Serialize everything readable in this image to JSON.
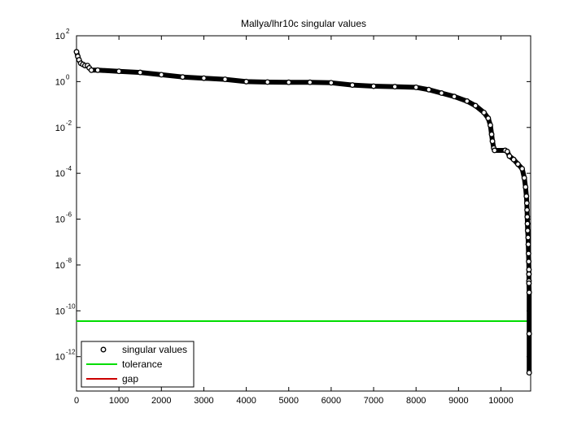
{
  "chart_data": {
    "type": "scatter",
    "title": "Mallya/lhr10c singular values",
    "xlabel": "",
    "ylabel": "",
    "xlim": [
      0,
      10700
    ],
    "ylim_log10": [
      -13.5,
      2
    ],
    "yscale": "log",
    "xticks": [
      "0",
      "1000",
      "2000",
      "3000",
      "4000",
      "5000",
      "6000",
      "7000",
      "8000",
      "9000",
      "10000"
    ],
    "yticks": [
      {
        "base": "10",
        "exp": "2"
      },
      {
        "base": "10",
        "exp": "0"
      },
      {
        "base": "10",
        "exp": "-2"
      },
      {
        "base": "10",
        "exp": "-4"
      },
      {
        "base": "10",
        "exp": "-6"
      },
      {
        "base": "10",
        "exp": "-8"
      },
      {
        "base": "10",
        "exp": "-10"
      },
      {
        "base": "10",
        "exp": "-12"
      }
    ],
    "legend_position": "bottom-left",
    "series": [
      {
        "name": "singular values",
        "marker": "circle",
        "color": "#000000",
        "points_log10": [
          [
            0,
            1.3
          ],
          [
            30,
            1.1
          ],
          [
            60,
            0.95
          ],
          [
            100,
            0.8
          ],
          [
            150,
            0.75
          ],
          [
            200,
            0.7
          ],
          [
            260,
            0.7
          ],
          [
            300,
            0.6
          ],
          [
            350,
            0.5
          ],
          [
            500,
            0.5
          ],
          [
            1000,
            0.45
          ],
          [
            1500,
            0.4
          ],
          [
            2000,
            0.3
          ],
          [
            2500,
            0.2
          ],
          [
            3000,
            0.15
          ],
          [
            3500,
            0.1
          ],
          [
            4000,
            0.0
          ],
          [
            4500,
            -0.02
          ],
          [
            5000,
            -0.03
          ],
          [
            5500,
            -0.03
          ],
          [
            6000,
            -0.05
          ],
          [
            6500,
            -0.15
          ],
          [
            7000,
            -0.2
          ],
          [
            7500,
            -0.22
          ],
          [
            8000,
            -0.25
          ],
          [
            8300,
            -0.35
          ],
          [
            8600,
            -0.5
          ],
          [
            8900,
            -0.65
          ],
          [
            9200,
            -0.85
          ],
          [
            9400,
            -1.05
          ],
          [
            9600,
            -1.35
          ],
          [
            9700,
            -1.6
          ],
          [
            9750,
            -1.9
          ],
          [
            9780,
            -2.3
          ],
          [
            9800,
            -2.6
          ],
          [
            9830,
            -2.9
          ],
          [
            9850,
            -3.0
          ],
          [
            10100,
            -3.0
          ],
          [
            10150,
            -3.05
          ],
          [
            10200,
            -3.25
          ],
          [
            10300,
            -3.4
          ],
          [
            10400,
            -3.6
          ],
          [
            10500,
            -3.8
          ],
          [
            10550,
            -4.2
          ],
          [
            10580,
            -4.6
          ],
          [
            10600,
            -5.0
          ],
          [
            10610,
            -5.3
          ],
          [
            10615,
            -5.6
          ],
          [
            10620,
            -5.9
          ],
          [
            10625,
            -6.2
          ],
          [
            10630,
            -6.5
          ],
          [
            10640,
            -6.8
          ],
          [
            10645,
            -7.1
          ],
          [
            10650,
            -7.5
          ],
          [
            10655,
            -7.85
          ],
          [
            10660,
            -8.2
          ],
          [
            10660,
            -8.4
          ],
          [
            10660,
            -8.7
          ],
          [
            10660,
            -8.8
          ],
          [
            10665,
            -9.2
          ],
          [
            10665,
            -11.0
          ],
          [
            10665,
            -12.7
          ]
        ]
      },
      {
        "name": "tolerance",
        "marker": "line",
        "color": "#00dd00",
        "y_log10": -10.45
      },
      {
        "name": "gap",
        "marker": "line",
        "color": "#cc0000",
        "x": 10665,
        "y_log10_range": [
          -10.45,
          -9.2
        ]
      }
    ]
  }
}
